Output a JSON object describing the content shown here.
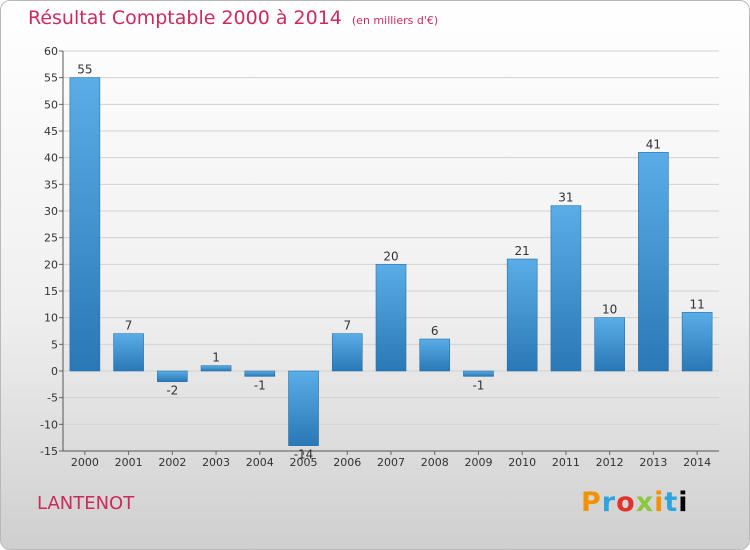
{
  "title": "Résultat Comptable 2000 à 2014",
  "unit": "(en milliers d'€)",
  "commune": "LANTENOT",
  "logo": [
    "P",
    "r",
    "o",
    "x",
    "i",
    "t",
    "i"
  ],
  "colors": {
    "bar_top": "#5aade6",
    "bar_bottom": "#2a78b6",
    "title": "#cc2a5a"
  },
  "chart_data": {
    "type": "bar",
    "title": "Résultat Comptable 2000 à 2014",
    "xlabel": "",
    "ylabel": "",
    "categories": [
      "2000",
      "2001",
      "2002",
      "2003",
      "2004",
      "2005",
      "2006",
      "2007",
      "2008",
      "2009",
      "2010",
      "2011",
      "2012",
      "2013",
      "2014"
    ],
    "values": [
      55,
      7,
      -2,
      1,
      -1,
      -14,
      7,
      20,
      6,
      -1,
      21,
      31,
      10,
      41,
      11
    ],
    "ylim": [
      -15,
      60
    ],
    "yticks": [
      60,
      55,
      50,
      45,
      40,
      35,
      30,
      25,
      20,
      15,
      10,
      5,
      0,
      -5,
      -10,
      -15
    ],
    "grid": true
  }
}
